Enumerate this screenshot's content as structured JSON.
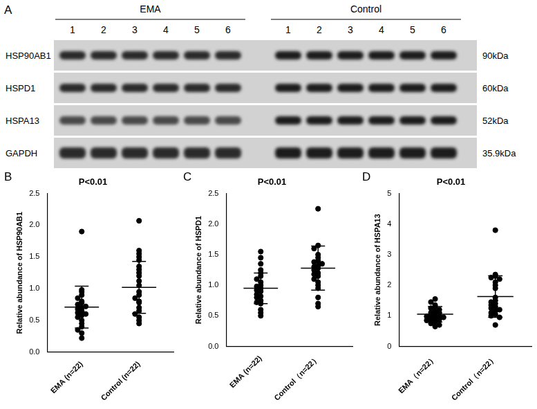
{
  "blot": {
    "label": "A",
    "groups": [
      {
        "name": "EMA",
        "lanes": [
          1,
          2,
          3,
          4,
          5,
          6
        ]
      },
      {
        "name": "Control",
        "lanes": [
          1,
          2,
          3,
          4,
          5,
          6
        ]
      }
    ],
    "rows": [
      {
        "protein": "HSP90AB1",
        "size": "90kDa"
      },
      {
        "protein": "HSPD1",
        "size": "60kDa"
      },
      {
        "protein": "HSPA13",
        "size": "52kDa"
      },
      {
        "protein": "GAPDH",
        "size": "35.9kDa"
      }
    ]
  },
  "chart_data": [
    {
      "type": "scatter",
      "annotation": "B",
      "title": "P<0.01",
      "y_label": "Relative abundance of HSP90AB1",
      "categories": [
        "EMA (n=22)",
        "Control (n=22)"
      ],
      "color": "#000000",
      "marker": "circle",
      "grid": false,
      "values": [
        [
          1.9,
          0.98,
          0.95,
          0.9,
          0.85,
          0.8,
          0.78,
          0.75,
          0.72,
          0.7,
          0.68,
          0.65,
          0.62,
          0.6,
          0.58,
          0.55,
          0.5,
          0.45,
          0.4,
          0.35,
          0.3,
          0.22
        ],
        [
          2.07,
          1.6,
          1.55,
          1.5,
          1.45,
          1.35,
          1.3,
          1.25,
          1.2,
          1.12,
          1.05,
          0.95,
          0.9,
          0.85,
          0.8,
          0.78,
          0.7,
          0.65,
          0.6,
          0.55,
          0.5,
          0.45
        ]
      ],
      "mean": [
        0.71,
        1.02
      ],
      "sd": [
        0.33,
        0.41
      ],
      "ylim": [
        0,
        2.5
      ],
      "yticks": [
        {
          "value": 0,
          "label": "0.0"
        },
        0.5,
        {
          "value": 1,
          "label": "1.0"
        },
        1.5,
        {
          "value": 2,
          "label": "2.0"
        },
        2.5
      ]
    },
    {
      "type": "scatter",
      "annotation": "C",
      "title": "P<0.01",
      "y_label": "Relative abundance of HSPD1",
      "categories": [
        "EMA (n=22)",
        "Control（n=22）"
      ],
      "color": "#000000",
      "marker": "circle",
      "grid": false,
      "values": [
        [
          1.55,
          1.45,
          1.35,
          1.25,
          1.2,
          1.15,
          1.1,
          1.05,
          1.0,
          0.98,
          0.95,
          0.92,
          0.9,
          0.85,
          0.82,
          0.8,
          0.75,
          0.72,
          0.7,
          0.6,
          0.55,
          0.5
        ],
        [
          2.25,
          1.65,
          1.6,
          1.5,
          1.45,
          1.4,
          1.38,
          1.35,
          1.32,
          1.3,
          1.28,
          1.25,
          1.2,
          1.18,
          1.15,
          1.1,
          1.05,
          1.0,
          0.95,
          0.8,
          0.7,
          0.65
        ]
      ],
      "mean": [
        0.95,
        1.28
      ],
      "sd": [
        0.25,
        0.36
      ],
      "ylim": [
        0,
        2.5
      ],
      "yticks": [
        {
          "value": 0,
          "label": "0.0"
        },
        0.5,
        {
          "value": 1,
          "label": "1.0"
        },
        1.5,
        {
          "value": 2,
          "label": "2.0"
        },
        2.5
      ]
    },
    {
      "type": "scatter",
      "annotation": "D",
      "title": "P<0.01",
      "y_label": "Relative abundance of HSPA13",
      "categories": [
        "EMA（n=22）",
        "Control（n=22）"
      ],
      "color": "#000000",
      "marker": "circle",
      "grid": false,
      "values": [
        [
          1.55,
          1.45,
          1.35,
          1.3,
          1.25,
          1.2,
          1.15,
          1.1,
          1.1,
          1.05,
          1.0,
          1.0,
          0.98,
          0.95,
          0.92,
          0.9,
          0.88,
          0.85,
          0.8,
          0.75,
          0.7,
          0.65
        ],
        [
          3.8,
          2.35,
          2.3,
          2.25,
          2.2,
          2.1,
          2.0,
          1.9,
          1.6,
          1.5,
          1.45,
          1.4,
          1.35,
          1.3,
          1.25,
          1.2,
          1.15,
          1.1,
          1.05,
          1.0,
          0.95,
          0.7
        ]
      ],
      "mean": [
        1.05,
        1.63
      ],
      "sd": [
        0.25,
        0.68
      ],
      "ylim": [
        0,
        5
      ],
      "yticks": [
        0,
        1,
        2,
        3,
        4,
        5
      ]
    }
  ]
}
